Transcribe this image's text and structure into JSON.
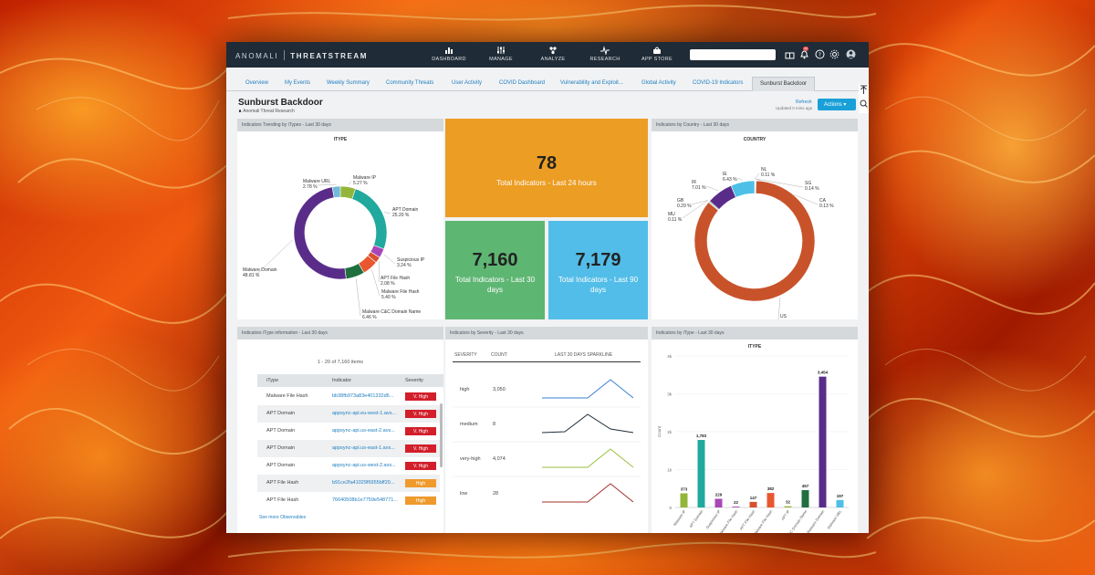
{
  "header": {
    "brand_left": "ANOMALI",
    "brand_right": "THREATSTREAM",
    "nav": [
      {
        "label": "DASHBOARD",
        "icon": "dashboard-icon"
      },
      {
        "label": "MANAGE",
        "icon": "manage-icon"
      },
      {
        "label": "ANALYZE",
        "icon": "analyze-icon"
      },
      {
        "label": "RESEARCH",
        "icon": "research-icon"
      },
      {
        "label": "APP STORE",
        "icon": "app-store-icon"
      }
    ],
    "notification_count": "22"
  },
  "tabs": [
    "Overview",
    "My Events",
    "Weekly Summary",
    "Community Threats",
    "User Activity",
    "COVID Dashboard",
    "Vulnerability and Exploit...",
    "Global Activity",
    "COVID-19 Indicators",
    "Sunburst Backdoor"
  ],
  "page": {
    "title": "Sunburst Backdoor",
    "subtitle": "Anomali Threat Research",
    "refresh": "Refresh",
    "updated": "Updated 0 mins ago",
    "actions": "Actions"
  },
  "panels": {
    "itype_trend": {
      "header": "Indicators Trending by iTypes - Last 30 days",
      "title": "ITYPE"
    },
    "country": {
      "header": "Indicators by Country - Last 30 days",
      "title": "COUNTRY"
    },
    "itype_info": {
      "header": "Indicators iType information - Last 30 days"
    },
    "severity": {
      "header": "Indicators by Severity - Last 30 days"
    },
    "itype_bar": {
      "header": "Indicators by iType - Last 30 days",
      "title": "ITYPE"
    }
  },
  "stats": {
    "day": {
      "value": "78",
      "label": "Total Indicators - Last 24 hours",
      "color": "#ec9d23"
    },
    "month": {
      "value": "7,160",
      "label": "Total Indicators - Last 30 days",
      "color": "#5eb673"
    },
    "quarter": {
      "value": "7,179",
      "label": "Total Indicators - Last 90 days",
      "color": "#52bde8"
    }
  },
  "table": {
    "count": "1 - 20 of 7,160 items",
    "columns": [
      "iType",
      "Indicator",
      "Severity"
    ],
    "rows": [
      {
        "itype": "Malware File Hash",
        "indicator": "bb38fb973a83e401332d6...",
        "severity": "V. High"
      },
      {
        "itype": "APT Domain",
        "indicator": "appsync-api.eu-west-1.avs...",
        "severity": "V. High"
      },
      {
        "itype": "APT Domain",
        "indicator": "appsync-api.us-east-2.avs...",
        "severity": "V. High"
      },
      {
        "itype": "APT Domain",
        "indicator": "appsync-api.us-east-1.avs...",
        "severity": "V. High"
      },
      {
        "itype": "APT Domain",
        "indicator": "appsync-api.us-west-2.avs...",
        "severity": "V. High"
      },
      {
        "itype": "APT File Hash",
        "indicator": "b91ce2fa41029f6955bff20...",
        "severity": "High"
      },
      {
        "itype": "APT File Hash",
        "indicator": "76640508b1e7759e548771...",
        "severity": "High"
      }
    ],
    "see_more": "See more Observables"
  },
  "severity_table": {
    "columns": [
      "SEVERITY",
      "COUNT",
      "LAST 30 DAYS SPARKLINE"
    ],
    "rows": [
      {
        "severity": "high",
        "count": "3,050",
        "color": "#3a7fd0",
        "spark": [
          0,
          0,
          0,
          1,
          0
        ]
      },
      {
        "severity": "medium",
        "count": "8",
        "color": "#1e2e3c",
        "spark": [
          0,
          0.05,
          1,
          0.2,
          0
        ]
      },
      {
        "severity": "very-high",
        "count": "4,074",
        "color": "#9ac23c",
        "spark": [
          0,
          0,
          0,
          1,
          0
        ]
      },
      {
        "severity": "low",
        "count": "28",
        "color": "#a0302a",
        "spark": [
          0,
          0,
          0,
          1,
          0
        ]
      }
    ]
  },
  "chart_data": [
    {
      "type": "pie",
      "title": "ITYPE",
      "labels": [
        "Malware IP",
        "APT Domain",
        "Suspicious IP",
        "APT File Hash",
        "Malware File Hash",
        "Malware C&C Domain Name",
        "Malware Domain",
        "Malware URL"
      ],
      "values": [
        5.27,
        25.2,
        3.24,
        2.08,
        5.4,
        6.46,
        48.81,
        2.78
      ],
      "value_labels": [
        "5.27 %",
        "25.20 %",
        "3.24 %",
        "2.08 %",
        "5.40 %",
        "6.46 %",
        "48.81 %",
        "2.78 %"
      ],
      "colors": [
        "#93b53a",
        "#21a99e",
        "#a847b8",
        "#d8502f",
        "#e9572e",
        "#1f6f3f",
        "#5a2c8a",
        "#73b9d8"
      ]
    },
    {
      "type": "pie",
      "title": "COUNTRY",
      "labels": [
        "NL",
        "SG",
        "CA",
        "US",
        "MU",
        "GB",
        "IR",
        "IE"
      ],
      "values": [
        0.11,
        0.14,
        0.13,
        85.66,
        0.11,
        0.29,
        7.01,
        6.43
      ],
      "value_labels": [
        "0.11 %",
        "0.14 %",
        "0.13 %",
        "85.66 %",
        "0.11 %",
        "0.29 %",
        "7.01 %",
        "6.43 %"
      ],
      "colors": [
        "#e06a4a",
        "#8a2f9c",
        "#f0a23a",
        "#c8532b",
        "#3a6fb0",
        "#2a9d5a",
        "#5a2c8a",
        "#4ec0e8"
      ]
    },
    {
      "type": "bar",
      "title": "ITYPE",
      "ylabel": "Count",
      "ylim": [
        0,
        4000
      ],
      "yticks": [
        "0",
        "1k",
        "2k",
        "3k",
        "4k"
      ],
      "categories": [
        "Malware IP",
        "APT Domain",
        "Suspicious IP",
        "Malware File Hash",
        "APT File Hash",
        "Malware File Hash",
        "APT IP",
        "Malware C&C Domain Name",
        "Malware Domain",
        "Malware URL"
      ],
      "values": [
        373,
        1783,
        229,
        22,
        147,
        382,
        32,
        457,
        3454,
        197
      ],
      "value_labels": [
        "373",
        "1,783",
        "229",
        "22",
        "147",
        "382",
        "32",
        "457",
        "3,454",
        "197"
      ],
      "colors": [
        "#93b53a",
        "#21a99e",
        "#a847b8",
        "#a847b8",
        "#d8502f",
        "#e9572e",
        "#93b53a",
        "#1f6f3f",
        "#5a2c8a",
        "#4ec0e8"
      ]
    }
  ]
}
